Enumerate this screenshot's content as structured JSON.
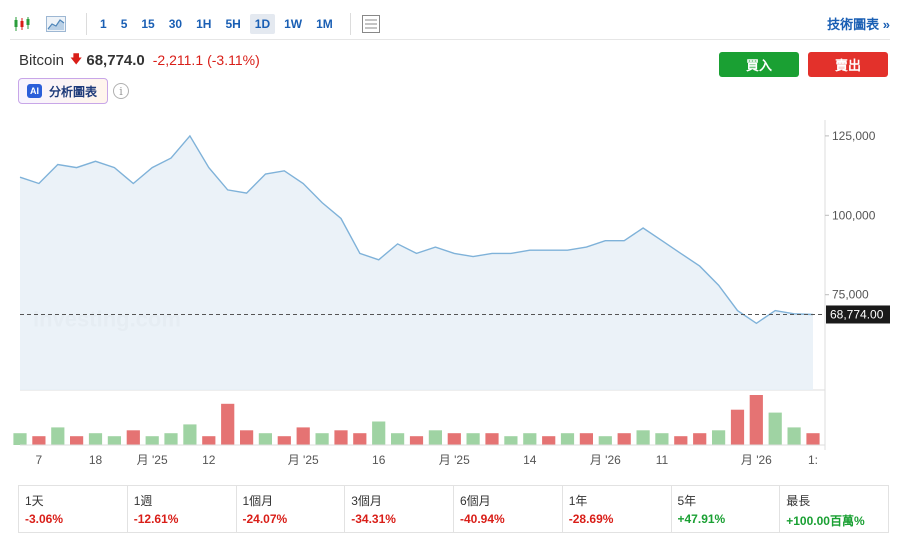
{
  "toolbar": {
    "intervals": [
      "1",
      "5",
      "15",
      "30",
      "1H",
      "5H",
      "1D",
      "1W",
      "1M"
    ],
    "active_interval": "1D",
    "technical_link": "技術圖表 »"
  },
  "header": {
    "symbol": "Bitcoin",
    "direction_icon": "arrow-down-icon",
    "price": "68,774.0",
    "change": "-2,211.1",
    "change_pct": "(-3.11%)",
    "buy_label": "買入",
    "sell_label": "賣出",
    "ai_badge": "AI",
    "ai_label": "分析圖表",
    "info_glyph": "i"
  },
  "colors": {
    "line": "#7fb2d9",
    "area": "#e8f0f7",
    "vol_up": "#9fd3a3",
    "vol_down": "#e57373",
    "negative": "#d91e18",
    "positive": "#1aa033",
    "accent": "#1a5fb4"
  },
  "chart_data": {
    "type": "area",
    "current_price_label": "68,774.00",
    "current_price": 68774,
    "ylim": [
      45000,
      130000
    ],
    "yticks": [
      75000,
      100000,
      125000
    ],
    "ytick_labels": [
      "75,000",
      "100,000",
      "125,000"
    ],
    "xtick_labels": [
      "7",
      "18",
      "月 '25",
      "12",
      "月 '25",
      "16",
      "月 '25",
      "14",
      "月 '26",
      "11",
      "月 '26",
      "1:"
    ],
    "xtick_index": [
      1,
      4,
      7,
      10,
      15,
      19,
      23,
      27,
      31,
      34,
      39,
      42
    ],
    "watermark": "Investing.com",
    "values": [
      112000,
      110000,
      116000,
      115000,
      117000,
      115000,
      110000,
      115000,
      118000,
      125000,
      115000,
      108000,
      107000,
      113000,
      114000,
      110000,
      104000,
      99000,
      88000,
      86000,
      91000,
      88000,
      90000,
      88000,
      87000,
      88000,
      88000,
      89000,
      89000,
      89000,
      90000,
      92000,
      92000,
      96000,
      92000,
      88000,
      84000,
      78000,
      70000,
      66000,
      70000,
      69000,
      68774
    ],
    "volume": [
      4,
      3,
      6,
      3,
      4,
      3,
      5,
      3,
      4,
      7,
      3,
      14,
      5,
      4,
      3,
      6,
      4,
      5,
      4,
      8,
      4,
      3,
      5,
      4,
      4,
      4,
      3,
      4,
      3,
      4,
      4,
      3,
      4,
      5,
      4,
      3,
      4,
      5,
      12,
      17,
      11,
      6,
      4
    ],
    "volume_up": [
      true,
      false,
      true,
      false,
      true,
      true,
      false,
      true,
      true,
      true,
      false,
      false,
      false,
      true,
      false,
      false,
      true,
      false,
      false,
      true,
      true,
      false,
      true,
      false,
      true,
      false,
      true,
      true,
      false,
      true,
      false,
      true,
      false,
      true,
      true,
      false,
      false,
      true,
      false,
      false,
      true,
      true,
      false
    ]
  },
  "performance": [
    {
      "label": "1天",
      "value": "-3.06%",
      "sign": "neg"
    },
    {
      "label": "1週",
      "value": "-12.61%",
      "sign": "neg"
    },
    {
      "label": "1個月",
      "value": "-24.07%",
      "sign": "neg"
    },
    {
      "label": "3個月",
      "value": "-34.31%",
      "sign": "neg"
    },
    {
      "label": "6個月",
      "value": "-40.94%",
      "sign": "neg"
    },
    {
      "label": "1年",
      "value": "-28.69%",
      "sign": "neg"
    },
    {
      "label": "5年",
      "value": "+47.91%",
      "sign": "pos"
    },
    {
      "label": "最長",
      "value": "+100.00百萬%",
      "sign": "pos"
    }
  ]
}
